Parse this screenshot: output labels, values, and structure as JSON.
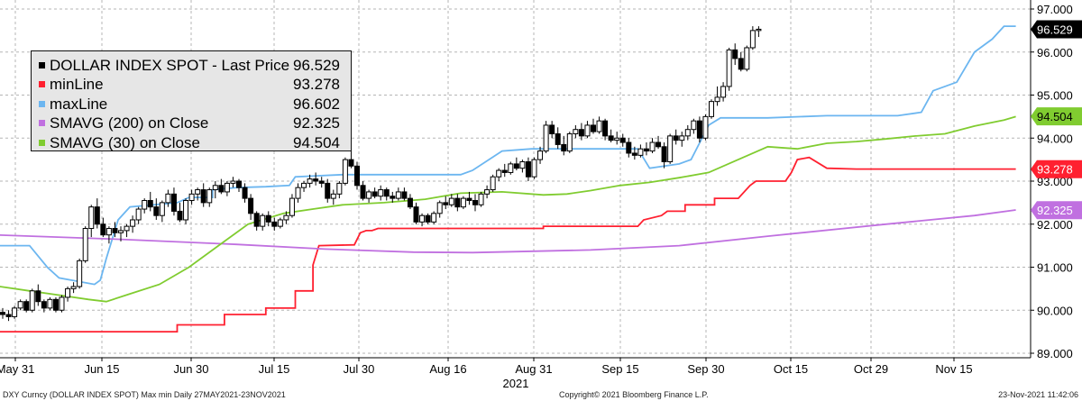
{
  "chart_data": {
    "type": "line",
    "title": "",
    "year_label": "2021",
    "x_ticks": [
      "May 31",
      "Jun 15",
      "Jun 30",
      "Jul 15",
      "Jul 30",
      "Aug 16",
      "Aug 31",
      "Sep 15",
      "Sep 30",
      "Oct 15",
      "Oct 29",
      "Nov 15"
    ],
    "ylim": [
      88.75,
      97.1
    ],
    "y_ticks": [
      "89.000",
      "90.000",
      "91.000",
      "92.000",
      "93.000",
      "94.000",
      "95.000",
      "96.000",
      "97.000"
    ],
    "grid": true,
    "legend_position": "top-left",
    "candles": [
      [
        89.95,
        90.05,
        89.8,
        89.9
      ],
      [
        89.9,
        90.0,
        89.75,
        89.85
      ],
      [
        89.85,
        90.1,
        89.8,
        90.05
      ],
      [
        90.05,
        90.25,
        90.0,
        90.2
      ],
      [
        90.2,
        90.25,
        89.95,
        90.0
      ],
      [
        90.0,
        90.5,
        89.95,
        90.45
      ],
      [
        90.45,
        90.6,
        90.1,
        90.2
      ],
      [
        90.2,
        90.25,
        89.95,
        90.05
      ],
      [
        90.05,
        90.3,
        90.0,
        90.25
      ],
      [
        90.25,
        90.3,
        89.95,
        90.0
      ],
      [
        90.0,
        90.35,
        89.95,
        90.3
      ],
      [
        90.3,
        90.55,
        90.2,
        90.5
      ],
      [
        90.5,
        90.65,
        90.4,
        90.55
      ],
      [
        90.55,
        91.2,
        90.5,
        91.15
      ],
      [
        91.15,
        91.95,
        91.1,
        91.9
      ],
      [
        91.9,
        92.45,
        91.7,
        92.4
      ],
      [
        92.4,
        92.6,
        91.9,
        92.0
      ],
      [
        92.0,
        92.15,
        91.7,
        91.75
      ],
      [
        91.75,
        91.95,
        91.55,
        91.9
      ],
      [
        91.9,
        92.05,
        91.7,
        91.8
      ],
      [
        91.8,
        91.95,
        91.6,
        91.85
      ],
      [
        91.85,
        92.0,
        91.7,
        91.95
      ],
      [
        91.95,
        92.2,
        91.8,
        92.1
      ],
      [
        92.1,
        92.4,
        92.0,
        92.35
      ],
      [
        92.35,
        92.6,
        92.25,
        92.55
      ],
      [
        92.55,
        92.75,
        92.3,
        92.4
      ],
      [
        92.4,
        92.6,
        92.1,
        92.2
      ],
      [
        92.2,
        92.55,
        92.05,
        92.5
      ],
      [
        92.5,
        92.8,
        92.4,
        92.7
      ],
      [
        92.7,
        92.85,
        92.2,
        92.3
      ],
      [
        92.3,
        92.5,
        92.05,
        92.1
      ],
      [
        92.1,
        92.6,
        92.0,
        92.55
      ],
      [
        92.55,
        92.8,
        92.45,
        92.7
      ],
      [
        92.7,
        92.85,
        92.55,
        92.8
      ],
      [
        92.8,
        92.95,
        92.4,
        92.5
      ],
      [
        92.5,
        92.85,
        92.4,
        92.8
      ],
      [
        92.8,
        93.0,
        92.6,
        92.9
      ],
      [
        92.9,
        93.05,
        92.7,
        92.75
      ],
      [
        92.75,
        93.0,
        92.65,
        92.95
      ],
      [
        92.95,
        93.1,
        92.85,
        93.0
      ],
      [
        93.0,
        93.05,
        92.75,
        92.85
      ],
      [
        92.85,
        92.95,
        92.5,
        92.6
      ],
      [
        92.6,
        92.7,
        92.1,
        92.25
      ],
      [
        92.25,
        92.3,
        91.85,
        91.95
      ],
      [
        91.95,
        92.25,
        91.85,
        92.2
      ],
      [
        92.2,
        92.3,
        91.95,
        92.05
      ],
      [
        92.05,
        92.15,
        91.85,
        91.95
      ],
      [
        91.95,
        92.15,
        91.9,
        92.1
      ],
      [
        92.1,
        92.3,
        92.0,
        92.2
      ],
      [
        92.2,
        92.7,
        92.15,
        92.6
      ],
      [
        92.6,
        92.95,
        92.5,
        92.85
      ],
      [
        92.85,
        93.0,
        92.75,
        92.95
      ],
      [
        92.95,
        93.15,
        92.85,
        93.05
      ],
      [
        93.05,
        93.2,
        92.9,
        93.0
      ],
      [
        93.0,
        93.1,
        92.85,
        92.95
      ],
      [
        92.95,
        93.05,
        92.5,
        92.6
      ],
      [
        92.6,
        92.8,
        92.45,
        92.7
      ],
      [
        92.7,
        93.0,
        92.6,
        92.95
      ],
      [
        92.95,
        93.55,
        92.9,
        93.5
      ],
      [
        93.5,
        93.75,
        93.3,
        93.35
      ],
      [
        93.35,
        93.45,
        92.8,
        92.9
      ],
      [
        92.9,
        93.0,
        92.55,
        92.6
      ],
      [
        92.6,
        92.8,
        92.5,
        92.75
      ],
      [
        92.75,
        92.85,
        92.6,
        92.65
      ],
      [
        92.65,
        92.9,
        92.55,
        92.8
      ],
      [
        92.8,
        92.85,
        92.55,
        92.65
      ],
      [
        92.65,
        92.75,
        92.5,
        92.6
      ],
      [
        92.6,
        92.85,
        92.55,
        92.75
      ],
      [
        92.75,
        92.85,
        92.55,
        92.6
      ],
      [
        92.6,
        92.7,
        92.35,
        92.4
      ],
      [
        92.4,
        92.5,
        92.0,
        92.05
      ],
      [
        92.05,
        92.25,
        91.95,
        92.2
      ],
      [
        92.2,
        92.25,
        92.0,
        92.05
      ],
      [
        92.05,
        92.3,
        92.0,
        92.25
      ],
      [
        92.25,
        92.55,
        92.15,
        92.5
      ],
      [
        92.5,
        92.65,
        92.35,
        92.45
      ],
      [
        92.45,
        92.7,
        92.4,
        92.6
      ],
      [
        92.6,
        92.7,
        92.3,
        92.4
      ],
      [
        92.4,
        92.65,
        92.35,
        92.6
      ],
      [
        92.6,
        92.75,
        92.45,
        92.55
      ],
      [
        92.55,
        92.7,
        92.3,
        92.45
      ],
      [
        92.45,
        92.75,
        92.4,
        92.7
      ],
      [
        92.7,
        92.9,
        92.6,
        92.8
      ],
      [
        92.8,
        93.15,
        92.75,
        93.1
      ],
      [
        93.1,
        93.3,
        93.0,
        93.25
      ],
      [
        93.25,
        93.4,
        93.1,
        93.2
      ],
      [
        93.2,
        93.45,
        93.15,
        93.4
      ],
      [
        93.4,
        93.55,
        93.25,
        93.3
      ],
      [
        93.3,
        93.5,
        93.2,
        93.45
      ],
      [
        93.45,
        93.55,
        93.0,
        93.1
      ],
      [
        93.1,
        93.55,
        93.05,
        93.5
      ],
      [
        93.5,
        93.8,
        93.4,
        93.7
      ],
      [
        93.7,
        94.4,
        93.65,
        94.3
      ],
      [
        94.3,
        94.4,
        94.0,
        94.1
      ],
      [
        94.1,
        94.25,
        93.75,
        93.85
      ],
      [
        93.85,
        94.05,
        93.6,
        93.7
      ],
      [
        93.7,
        94.15,
        93.65,
        94.1
      ],
      [
        94.1,
        94.3,
        94.0,
        94.2
      ],
      [
        94.2,
        94.35,
        93.95,
        94.05
      ],
      [
        94.05,
        94.4,
        94.0,
        94.3
      ],
      [
        94.3,
        94.45,
        94.1,
        94.15
      ],
      [
        94.15,
        94.5,
        94.1,
        94.4
      ],
      [
        94.4,
        94.45,
        93.95,
        94.05
      ],
      [
        94.05,
        94.2,
        93.9,
        93.95
      ],
      [
        93.95,
        94.15,
        93.85,
        94.0
      ],
      [
        94.0,
        94.1,
        93.8,
        93.9
      ],
      [
        93.9,
        94.0,
        93.55,
        93.65
      ],
      [
        93.65,
        93.8,
        93.5,
        93.6
      ],
      [
        93.6,
        93.85,
        93.55,
        93.75
      ],
      [
        93.75,
        93.9,
        93.6,
        93.7
      ],
      [
        93.7,
        94.0,
        93.65,
        93.9
      ],
      [
        93.9,
        94.05,
        93.75,
        93.8
      ],
      [
        93.8,
        93.9,
        93.3,
        93.45
      ],
      [
        93.45,
        94.1,
        93.4,
        94.05
      ],
      [
        94.05,
        94.2,
        93.85,
        93.95
      ],
      [
        93.95,
        94.15,
        93.8,
        94.05
      ],
      [
        94.05,
        94.3,
        93.95,
        94.2
      ],
      [
        94.2,
        94.45,
        94.1,
        94.4
      ],
      [
        94.4,
        94.5,
        93.9,
        94.0
      ],
      [
        94.0,
        94.55,
        93.95,
        94.5
      ],
      [
        94.5,
        94.9,
        94.45,
        94.85
      ],
      [
        94.85,
        95.2,
        94.75,
        94.95
      ],
      [
        94.95,
        95.3,
        94.85,
        95.2
      ],
      [
        95.2,
        96.1,
        95.1,
        96.05
      ],
      [
        96.05,
        96.2,
        95.7,
        95.85
      ],
      [
        95.85,
        96.0,
        95.55,
        95.6
      ],
      [
        95.6,
        96.15,
        95.55,
        96.1
      ],
      [
        96.1,
        96.6,
        96.05,
        96.5
      ],
      [
        96.5,
        96.6,
        96.35,
        96.53
      ]
    ],
    "series": [
      {
        "name": "DOLLAR INDEX SPOT - Last Price",
        "last_value": "96.529",
        "color": "#000000"
      },
      {
        "name": "minLine",
        "last_value": "93.278",
        "color": "#ff2030",
        "points": [
          [
            0,
            89.5
          ],
          [
            30,
            89.5
          ],
          [
            30,
            89.66
          ],
          [
            38,
            89.66
          ],
          [
            38,
            89.9
          ],
          [
            45,
            89.9
          ],
          [
            45,
            90.05
          ],
          [
            50,
            90.05
          ],
          [
            50,
            90.45
          ],
          [
            53,
            90.45
          ],
          [
            53,
            91.05
          ],
          [
            54,
            91.5
          ],
          [
            60,
            91.52
          ],
          [
            61,
            91.8
          ],
          [
            62,
            91.85
          ],
          [
            63,
            91.85
          ],
          [
            64,
            91.9
          ],
          [
            70,
            91.9
          ],
          [
            80,
            91.9
          ],
          [
            92,
            91.9
          ],
          [
            92,
            91.95
          ],
          [
            105,
            91.95
          ],
          [
            107,
            91.95
          ],
          [
            108,
            91.95
          ],
          [
            109,
            92.1
          ],
          [
            112,
            92.2
          ],
          [
            113,
            92.3
          ],
          [
            116,
            92.3
          ],
          [
            116,
            92.45
          ],
          [
            121,
            92.45
          ],
          [
            121,
            92.6
          ],
          [
            125,
            92.6
          ],
          [
            127,
            92.9
          ],
          [
            128,
            93.0
          ],
          [
            133,
            93.0
          ],
          [
            134,
            93.2
          ],
          [
            135,
            93.5
          ],
          [
            137,
            93.55
          ],
          [
            140,
            93.3
          ],
          [
            145,
            93.28
          ],
          [
            172,
            93.28
          ]
        ]
      },
      {
        "name": "maxLine",
        "last_value": "96.602",
        "color": "#6cb6f0",
        "points": [
          [
            0,
            91.5
          ],
          [
            5,
            91.5
          ],
          [
            8,
            91.0
          ],
          [
            10,
            90.75
          ],
          [
            16,
            90.6
          ],
          [
            17,
            90.7
          ],
          [
            18,
            91.2
          ],
          [
            20,
            92.1
          ],
          [
            22,
            92.4
          ],
          [
            26,
            92.45
          ],
          [
            30,
            92.5
          ],
          [
            32,
            92.62
          ],
          [
            36,
            92.62
          ],
          [
            36,
            92.8
          ],
          [
            40,
            92.85
          ],
          [
            45,
            92.87
          ],
          [
            49,
            92.9
          ],
          [
            50,
            93.1
          ],
          [
            58,
            93.15
          ],
          [
            70,
            93.15
          ],
          [
            78,
            93.15
          ],
          [
            80,
            93.25
          ],
          [
            85,
            93.7
          ],
          [
            90,
            93.75
          ],
          [
            108,
            93.75
          ],
          [
            110,
            93.3
          ],
          [
            115,
            93.4
          ],
          [
            117,
            93.5
          ],
          [
            120,
            94.3
          ],
          [
            122,
            94.47
          ],
          [
            130,
            94.47
          ],
          [
            140,
            94.52
          ],
          [
            152,
            94.52
          ],
          [
            156,
            94.6
          ],
          [
            158,
            95.1
          ],
          [
            162,
            95.3
          ],
          [
            165,
            96.0
          ],
          [
            168,
            96.3
          ],
          [
            170,
            96.6
          ],
          [
            172,
            96.6
          ]
        ]
      },
      {
        "name": "SMAVG (200)  on Close",
        "last_value": "92.325",
        "color": "#c070e0",
        "points": [
          [
            -5,
            91.77
          ],
          [
            20,
            91.65
          ],
          [
            40,
            91.53
          ],
          [
            55,
            91.42
          ],
          [
            70,
            91.35
          ],
          [
            80,
            91.34
          ],
          [
            100,
            91.4
          ],
          [
            115,
            91.5
          ],
          [
            130,
            91.72
          ],
          [
            150,
            92.0
          ],
          [
            165,
            92.2
          ],
          [
            172,
            92.33
          ]
        ]
      },
      {
        "name": "SMAVG (30)  on Close",
        "last_value": "94.504",
        "color": "#80cc30",
        "points": [
          [
            -5,
            90.65
          ],
          [
            5,
            90.45
          ],
          [
            10,
            90.35
          ],
          [
            15,
            90.25
          ],
          [
            18,
            90.2
          ],
          [
            22,
            90.38
          ],
          [
            27,
            90.6
          ],
          [
            32,
            91.0
          ],
          [
            37,
            91.5
          ],
          [
            42,
            92.0
          ],
          [
            48,
            92.25
          ],
          [
            53,
            92.35
          ],
          [
            58,
            92.45
          ],
          [
            65,
            92.5
          ],
          [
            72,
            92.58
          ],
          [
            78,
            92.72
          ],
          [
            85,
            92.75
          ],
          [
            92,
            92.68
          ],
          [
            96,
            92.7
          ],
          [
            100,
            92.78
          ],
          [
            105,
            92.9
          ],
          [
            110,
            92.97
          ],
          [
            115,
            93.08
          ],
          [
            120,
            93.2
          ],
          [
            125,
            93.5
          ],
          [
            130,
            93.8
          ],
          [
            135,
            93.75
          ],
          [
            140,
            93.88
          ],
          [
            145,
            93.92
          ],
          [
            150,
            93.98
          ],
          [
            155,
            94.05
          ],
          [
            160,
            94.1
          ],
          [
            165,
            94.28
          ],
          [
            170,
            94.42
          ],
          [
            172,
            94.5
          ]
        ]
      }
    ]
  },
  "footer": {
    "left": "DXY Curncy (DOLLAR INDEX SPOT) Max min  Daily 27MAY2021-23NOV2021",
    "center": "Copyright© 2021 Bloomberg Finance L.P.",
    "right": "23-Nov-2021 11:42:06"
  },
  "colors": {
    "grid": "#b5b5b5",
    "candle": "#000000",
    "legend_bg": "#e6e6e6"
  }
}
